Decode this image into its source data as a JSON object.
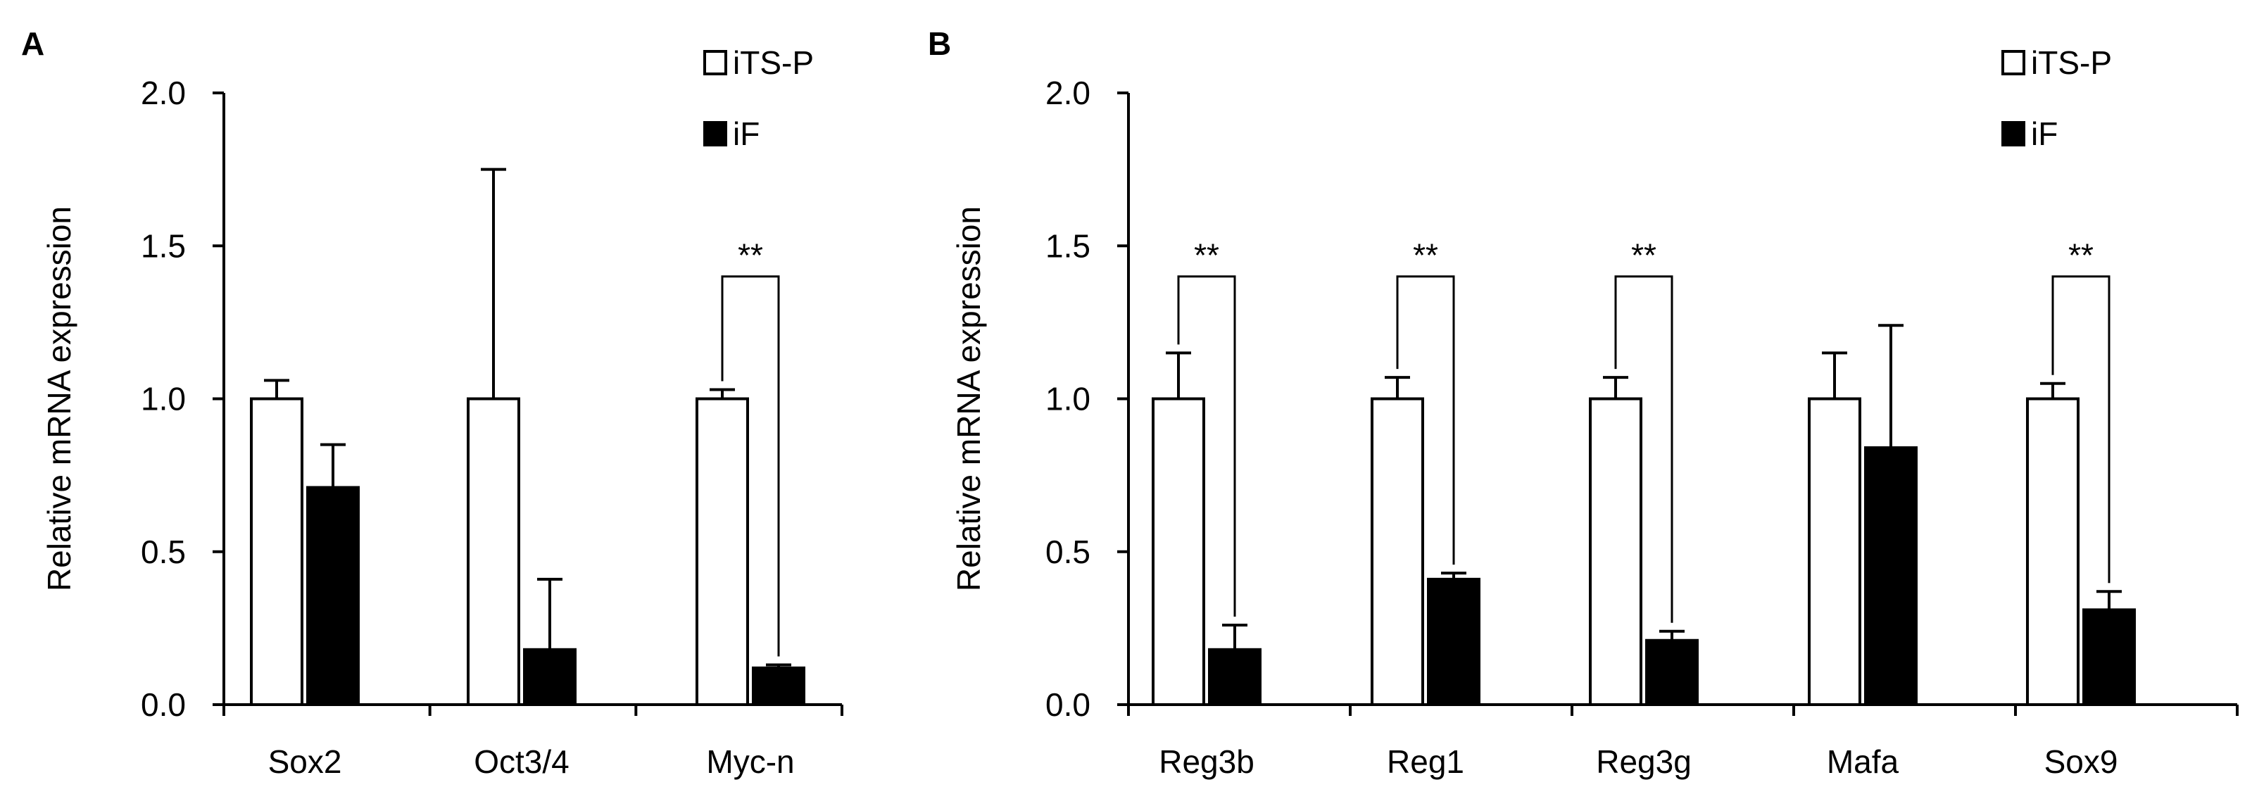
{
  "chart_data": [
    {
      "panel_label": "A",
      "type": "bar",
      "ylabel": "Relative mRNA expression",
      "ylim": [
        0,
        2.0
      ],
      "yticks": [
        "0.0",
        "0.5",
        "1.0",
        "1.5",
        "2.0"
      ],
      "categories": [
        "Sox2",
        "Oct3/4",
        "Myc-n"
      ],
      "series": [
        {
          "name": "iTS-P",
          "fill": "#ffffff",
          "values": [
            1.0,
            1.0,
            1.0
          ],
          "errors": [
            0.06,
            0.75,
            0.03
          ]
        },
        {
          "name": "iF",
          "fill": "#000000",
          "values": [
            0.71,
            0.18,
            0.12
          ],
          "errors": [
            0.14,
            0.23,
            0.01
          ]
        }
      ],
      "significance": [
        {
          "category": "Myc-n",
          "label": "**"
        }
      ],
      "legend_position": "top-right"
    },
    {
      "panel_label": "B",
      "type": "bar",
      "ylabel": "Relative mRNA expression",
      "ylim": [
        0,
        2.0
      ],
      "yticks": [
        "0.0",
        "0.5",
        "1.0",
        "1.5",
        "2.0"
      ],
      "categories": [
        "Reg3b",
        "Reg1",
        "Reg3g",
        "Mafa",
        "Sox9"
      ],
      "series": [
        {
          "name": "iTS-P",
          "fill": "#ffffff",
          "values": [
            1.0,
            1.0,
            1.0,
            1.0,
            1.0
          ],
          "errors": [
            0.15,
            0.07,
            0.07,
            0.15,
            0.05
          ]
        },
        {
          "name": "iF",
          "fill": "#000000",
          "values": [
            0.18,
            0.41,
            0.21,
            0.84,
            0.31
          ],
          "errors": [
            0.08,
            0.02,
            0.03,
            0.4,
            0.06
          ]
        }
      ],
      "significance": [
        {
          "category": "Reg3b",
          "label": "**"
        },
        {
          "category": "Reg1",
          "label": "**"
        },
        {
          "category": "Reg3g",
          "label": "**"
        },
        {
          "category": "Sox9",
          "label": "**"
        }
      ],
      "legend_position": "top-right"
    }
  ]
}
